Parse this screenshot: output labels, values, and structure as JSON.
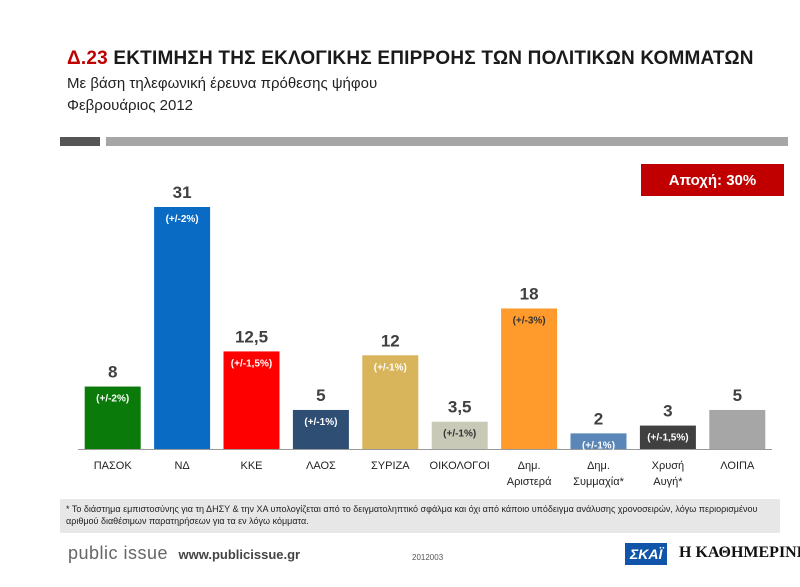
{
  "header": {
    "code": "Δ.23",
    "title": "ΕΚΤΙΜΗΣΗ ΤΗΣ ΕΚΛΟΓΙΚΗΣ ΕΠΙΡΡΟΗΣ ΤΩΝ ΠΟΛΙΤΙΚΩΝ ΚΟΜΜΑΤΩΝ",
    "subtitle": "Με βάση τηλεφωνική έρευνα πρόθεσης ψήφου",
    "period": "Φεβρουάριος 2012"
  },
  "abstention_label": "Αποχή: 30%",
  "chart_data": {
    "type": "bar",
    "categories": [
      [
        "ΠΑΣΟΚ"
      ],
      [
        "ΝΔ"
      ],
      [
        "ΚΚΕ"
      ],
      [
        "ΛΑΟΣ"
      ],
      [
        "ΣΥΡΙΖΑ"
      ],
      [
        "ΟΙΚΟΛΟΓΟΙ"
      ],
      [
        "Δημ.",
        "Αριστερά"
      ],
      [
        "Δημ.",
        "Συμμαχία*"
      ],
      [
        "Χρυσή",
        "Αυγή*"
      ],
      [
        "ΛΟΙΠΑ"
      ]
    ],
    "values": [
      8,
      31,
      12.5,
      5,
      12,
      3.5,
      18,
      2,
      3,
      5
    ],
    "value_labels": [
      "8",
      "31",
      "12,5",
      "5",
      "12",
      "3,5",
      "18",
      "2",
      "3",
      "5"
    ],
    "margins": [
      "(+/-2%)",
      "(+/-2%)",
      "(+/-1,5%)",
      "(+/-1%)",
      "(+/-1%)",
      "(+/-1%)",
      "(+/-3%)",
      "(+/-1%)",
      "(+/-1,5%)",
      ""
    ],
    "colors": [
      "#0a7a0a",
      "#0a6bc4",
      "#ff0000",
      "#2e4e74",
      "#d8b45a",
      "#c9c9b8",
      "#ff9a2c",
      "#5b86b8",
      "#404040",
      "#a6a6a6"
    ],
    "margin_colors": [
      "#ffffff",
      "#ffffff",
      "#ffffff",
      "#ffffff",
      "#ffffff",
      "#333333",
      "#333333",
      "#ffffff",
      "#ffffff",
      "#ffffff"
    ],
    "ylim": [
      0,
      31
    ],
    "grid": false
  },
  "footnote": "* Το διάστημα εμπιστοσύνης για τη ΔΗΣΥ & την ΧΑ υπολογίζεται από το δειγματοληπτικό σφάλμα και όχι από κάποιο υπόδειγμα ανάλυσης χρονοσειρών, λόγω περιορισμένου αριθμού διαθέσιμων παρατηρήσεων για τα εν λόγω κόμματα.",
  "footer": {
    "brand": "public issue",
    "url": "www.publicissue.gr",
    "doc_code": "2012003",
    "skai": "ΣΚΑΪ",
    "kathimerini": "Η ΚΑΘΗΜΕΡΙΝΗ"
  }
}
